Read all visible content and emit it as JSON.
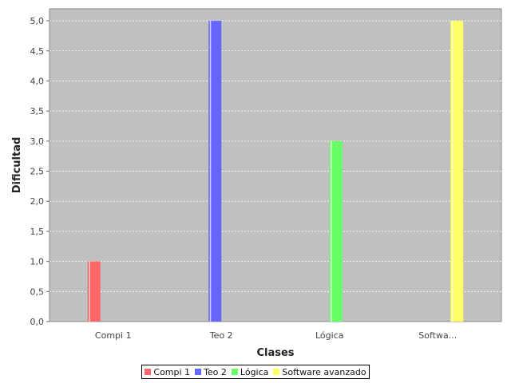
{
  "chart_data": {
    "type": "bar",
    "categories": [
      "Compi 1",
      "Teo 2",
      "Lógica",
      "Softwa..."
    ],
    "series": [
      {
        "name": "Compi 1",
        "color": "#ff6666",
        "values": [
          1.0,
          0,
          0,
          0
        ]
      },
      {
        "name": "Teo 2",
        "color": "#6666ff",
        "values": [
          0,
          5.0,
          0,
          0
        ]
      },
      {
        "name": "Lógica",
        "color": "#66ff66",
        "values": [
          0,
          0,
          3.0,
          0
        ]
      },
      {
        "name": "Software avanzado",
        "color": "#ffff66",
        "values": [
          0,
          0,
          0,
          5.0
        ]
      }
    ],
    "xlabel": "Clases",
    "ylabel": "Dificultad",
    "ylim": [
      0,
      5.2
    ],
    "yticks": [
      "0,0",
      "0,5",
      "1,0",
      "1,5",
      "2,0",
      "2,5",
      "3,0",
      "3,5",
      "4,0",
      "4,5",
      "5,0"
    ],
    "grid": true,
    "plot_background": "#c0c0c0",
    "legend_position": "bottom"
  }
}
